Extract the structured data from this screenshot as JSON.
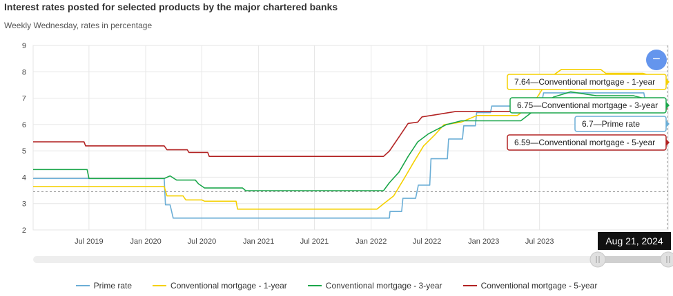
{
  "header": {
    "title": "Interest rates posted for selected products by the major chartered banks",
    "subtitle": "Weekly Wednesday, rates in percentage"
  },
  "zoom_button": {
    "label": "−",
    "icon": "minus-icon"
  },
  "date_badge": "Aug 21, 2024",
  "chart_data": {
    "type": "line",
    "title": "Interest rates posted for selected products by the major chartered banks",
    "subtitle": "Weekly Wednesday, rates in percentage",
    "xlabel": "",
    "ylabel": "",
    "xlim": [
      "2019-01-01",
      "2024-08-21"
    ],
    "ylim": [
      2,
      9
    ],
    "yticks": [
      2,
      3,
      4,
      5,
      6,
      7,
      8,
      9
    ],
    "xticks": [
      {
        "date": "2019-07-01",
        "label": "Jul 2019"
      },
      {
        "date": "2020-01-01",
        "label": "Jan 2020"
      },
      {
        "date": "2020-07-01",
        "label": "Jul 2020"
      },
      {
        "date": "2021-01-01",
        "label": "Jan 2021"
      },
      {
        "date": "2021-07-01",
        "label": "Jul 2021"
      },
      {
        "date": "2022-01-01",
        "label": "Jan 2022"
      },
      {
        "date": "2022-07-01",
        "label": "Jul 2022"
      },
      {
        "date": "2023-01-01",
        "label": "Jan 2023"
      },
      {
        "date": "2023-07-01",
        "label": "Jul 2023"
      }
    ],
    "grid": true,
    "legend_position": "bottom",
    "crosshair_y": 3.45,
    "series": [
      {
        "name": "Prime rate",
        "color": "#6baed6",
        "points": [
          [
            "2019-01-01",
            3.95
          ],
          [
            "2020-03-01",
            3.95
          ],
          [
            "2020-03-05",
            2.95
          ],
          [
            "2020-03-20",
            2.95
          ],
          [
            "2020-03-30",
            2.45
          ],
          [
            "2022-03-01",
            2.45
          ],
          [
            "2022-03-03",
            2.7
          ],
          [
            "2022-04-10",
            2.7
          ],
          [
            "2022-04-14",
            3.2
          ],
          [
            "2022-05-25",
            3.2
          ],
          [
            "2022-06-03",
            3.7
          ],
          [
            "2022-07-10",
            3.7
          ],
          [
            "2022-07-14",
            4.7
          ],
          [
            "2022-09-05",
            4.7
          ],
          [
            "2022-09-09",
            5.45
          ],
          [
            "2022-10-24",
            5.45
          ],
          [
            "2022-10-28",
            5.95
          ],
          [
            "2022-12-05",
            5.95
          ],
          [
            "2022-12-09",
            6.45
          ],
          [
            "2023-01-23",
            6.45
          ],
          [
            "2023-01-27",
            6.7
          ],
          [
            "2023-06-05",
            6.7
          ],
          [
            "2023-06-09",
            6.95
          ],
          [
            "2023-07-10",
            6.95
          ],
          [
            "2023-07-14",
            7.2
          ],
          [
            "2024-06-03",
            7.2
          ],
          [
            "2024-06-07",
            6.95
          ],
          [
            "2024-07-22",
            6.95
          ],
          [
            "2024-07-26",
            6.7
          ],
          [
            "2024-08-21",
            6.7
          ]
        ]
      },
      {
        "name": "Conventional mortgage - 1-year",
        "color": "#f5d000",
        "points": [
          [
            "2019-01-01",
            3.64
          ],
          [
            "2020-03-01",
            3.64
          ],
          [
            "2020-03-10",
            3.29
          ],
          [
            "2020-05-01",
            3.29
          ],
          [
            "2020-05-10",
            3.14
          ],
          [
            "2020-07-01",
            3.14
          ],
          [
            "2020-07-10",
            3.09
          ],
          [
            "2020-10-20",
            3.09
          ],
          [
            "2020-10-25",
            2.79
          ],
          [
            "2022-01-20",
            2.79
          ],
          [
            "2022-02-10",
            2.99
          ],
          [
            "2022-03-15",
            3.29
          ],
          [
            "2022-04-20",
            3.99
          ],
          [
            "2022-05-20",
            4.59
          ],
          [
            "2022-06-20",
            5.19
          ],
          [
            "2022-07-25",
            5.59
          ],
          [
            "2022-08-25",
            5.99
          ],
          [
            "2022-10-20",
            6.09
          ],
          [
            "2022-12-10",
            6.34
          ],
          [
            "2023-01-25",
            6.34
          ],
          [
            "2023-04-20",
            6.34
          ],
          [
            "2023-06-10",
            6.79
          ],
          [
            "2023-07-10",
            7.34
          ],
          [
            "2023-08-05",
            7.79
          ],
          [
            "2023-09-10",
            8.09
          ],
          [
            "2024-01-15",
            8.09
          ],
          [
            "2024-02-01",
            7.94
          ],
          [
            "2024-06-01",
            7.94
          ],
          [
            "2024-07-15",
            7.79
          ],
          [
            "2024-08-21",
            7.64
          ]
        ]
      },
      {
        "name": "Conventional mortgage - 3-year",
        "color": "#1aa64a",
        "points": [
          [
            "2019-01-01",
            4.29
          ],
          [
            "2019-06-25",
            4.29
          ],
          [
            "2019-07-01",
            3.95
          ],
          [
            "2020-03-01",
            3.95
          ],
          [
            "2020-03-20",
            4.05
          ],
          [
            "2020-04-10",
            3.89
          ],
          [
            "2020-06-10",
            3.89
          ],
          [
            "2020-06-20",
            3.75
          ],
          [
            "2020-07-10",
            3.59
          ],
          [
            "2020-11-10",
            3.59
          ],
          [
            "2020-11-20",
            3.49
          ],
          [
            "2022-02-10",
            3.49
          ],
          [
            "2022-03-01",
            3.79
          ],
          [
            "2022-04-01",
            4.19
          ],
          [
            "2022-05-01",
            4.79
          ],
          [
            "2022-06-01",
            5.34
          ],
          [
            "2022-07-05",
            5.64
          ],
          [
            "2022-09-01",
            5.99
          ],
          [
            "2022-10-20",
            6.14
          ],
          [
            "2023-01-01",
            6.14
          ],
          [
            "2023-05-01",
            6.14
          ],
          [
            "2023-06-20",
            6.59
          ],
          [
            "2023-08-15",
            7.04
          ],
          [
            "2023-10-10",
            7.24
          ],
          [
            "2024-01-01",
            7.09
          ],
          [
            "2024-05-01",
            7.09
          ],
          [
            "2024-06-20",
            6.94
          ],
          [
            "2024-08-21",
            6.75
          ]
        ]
      },
      {
        "name": "Conventional mortgage - 5-year",
        "color": "#b22222",
        "points": [
          [
            "2019-01-01",
            5.34
          ],
          [
            "2019-06-15",
            5.34
          ],
          [
            "2019-06-20",
            5.19
          ],
          [
            "2020-03-01",
            5.19
          ],
          [
            "2020-03-10",
            5.04
          ],
          [
            "2020-05-15",
            5.04
          ],
          [
            "2020-05-20",
            4.94
          ],
          [
            "2020-07-20",
            4.94
          ],
          [
            "2020-07-25",
            4.79
          ],
          [
            "2022-02-10",
            4.79
          ],
          [
            "2022-03-01",
            4.99
          ],
          [
            "2022-04-05",
            5.59
          ],
          [
            "2022-05-01",
            6.04
          ],
          [
            "2022-06-01",
            6.09
          ],
          [
            "2022-06-15",
            6.29
          ],
          [
            "2022-10-01",
            6.49
          ],
          [
            "2023-06-01",
            6.49
          ],
          [
            "2023-07-01",
            6.59
          ],
          [
            "2024-07-01",
            6.59
          ],
          [
            "2024-08-21",
            6.59
          ]
        ]
      }
    ],
    "tooltips": [
      {
        "series": "Conventional mortgage - 1-year",
        "value": "7.64",
        "text": "7.64—Conventional mortgage - 1-year",
        "color": "#f5d000"
      },
      {
        "series": "Conventional mortgage - 3-year",
        "value": "6.75",
        "text": "6.75—Conventional mortgage - 3-year",
        "color": "#1aa64a"
      },
      {
        "series": "Prime rate",
        "value": "6.7",
        "text": "6.7—Prime rate",
        "color": "#6baed6"
      },
      {
        "series": "Conventional mortgage - 5-year",
        "value": "6.59",
        "text": "6.59—Conventional mortgage - 5-year",
        "color": "#b22222"
      }
    ]
  }
}
